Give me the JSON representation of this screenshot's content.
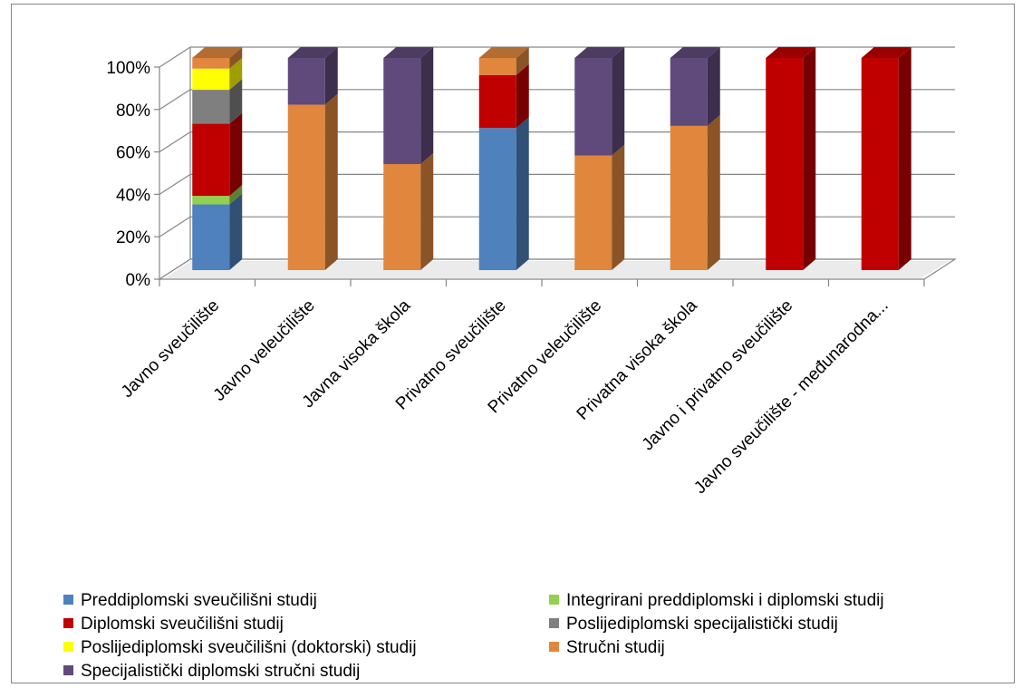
{
  "chart_data": {
    "type": "bar",
    "stacked": true,
    "percent_stacked": true,
    "three_d": true,
    "ylim": [
      0,
      100
    ],
    "y_ticks": [
      "0%",
      "20%",
      "40%",
      "60%",
      "80%",
      "100%"
    ],
    "y_tick_values": [
      0,
      20,
      40,
      60,
      80,
      100
    ],
    "grid": true,
    "legend_position": "bottom",
    "categories": [
      "Javno sveučilište",
      "Javno veleučilište",
      "Javna visoka škola",
      "Privatno sveučilište",
      "Privatno veleučilište",
      "Privatna visoka škola",
      "Javno i privatno sveučilište",
      "Javno sveučilište - međunarodna..."
    ],
    "series": [
      {
        "name": "Preddiplomski sveučilišni studij",
        "color": "#4F81BD",
        "values": [
          31,
          0,
          0,
          67,
          0,
          0,
          0,
          0
        ]
      },
      {
        "name": "Integrirani preddiplomski i diplomski studij",
        "color": "#92D050",
        "values": [
          4,
          0,
          0,
          0,
          0,
          0,
          0,
          0
        ]
      },
      {
        "name": "Diplomski sveučilišni studij",
        "color": "#C00000",
        "values": [
          34,
          0,
          0,
          25,
          0,
          0,
          100,
          100
        ]
      },
      {
        "name": "Poslijediplomski specijalistički studij",
        "color": "#7F7F7F",
        "values": [
          16,
          0,
          0,
          0,
          0,
          0,
          0,
          0
        ]
      },
      {
        "name": "Poslijediplomski sveučilišni (doktorski) studij",
        "color": "#FFFF00",
        "values": [
          10,
          0,
          0,
          0,
          0,
          0,
          0,
          0
        ]
      },
      {
        "name": "Stručni studij",
        "color": "#E0873D",
        "values": [
          5,
          78,
          50,
          8,
          54,
          68,
          0,
          0
        ]
      },
      {
        "name": "Specijalistički diplomski stručni studij",
        "color": "#604A7B",
        "values": [
          0,
          22,
          50,
          0,
          46,
          32,
          0,
          0
        ]
      }
    ]
  }
}
